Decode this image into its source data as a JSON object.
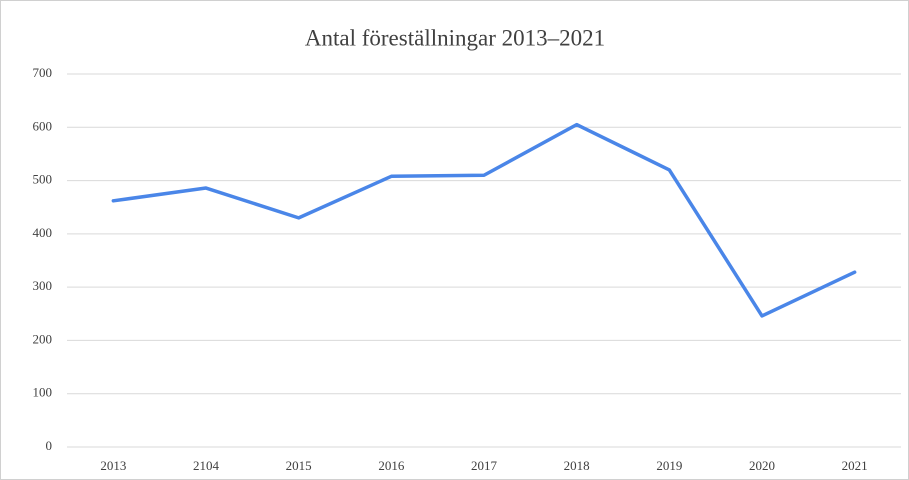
{
  "chart_data": {
    "type": "line",
    "title": "Antal föreställningar 2013–2021",
    "categories": [
      "2013",
      "2104",
      "2015",
      "2016",
      "2017",
      "2018",
      "2019",
      "2020",
      "2021"
    ],
    "values": [
      462,
      486,
      430,
      508,
      510,
      605,
      520,
      246,
      328
    ],
    "color": "#4a86e8",
    "ylim": [
      0,
      700
    ],
    "yticks": [
      0,
      100,
      200,
      300,
      400,
      500,
      600,
      700
    ],
    "grid": true
  }
}
